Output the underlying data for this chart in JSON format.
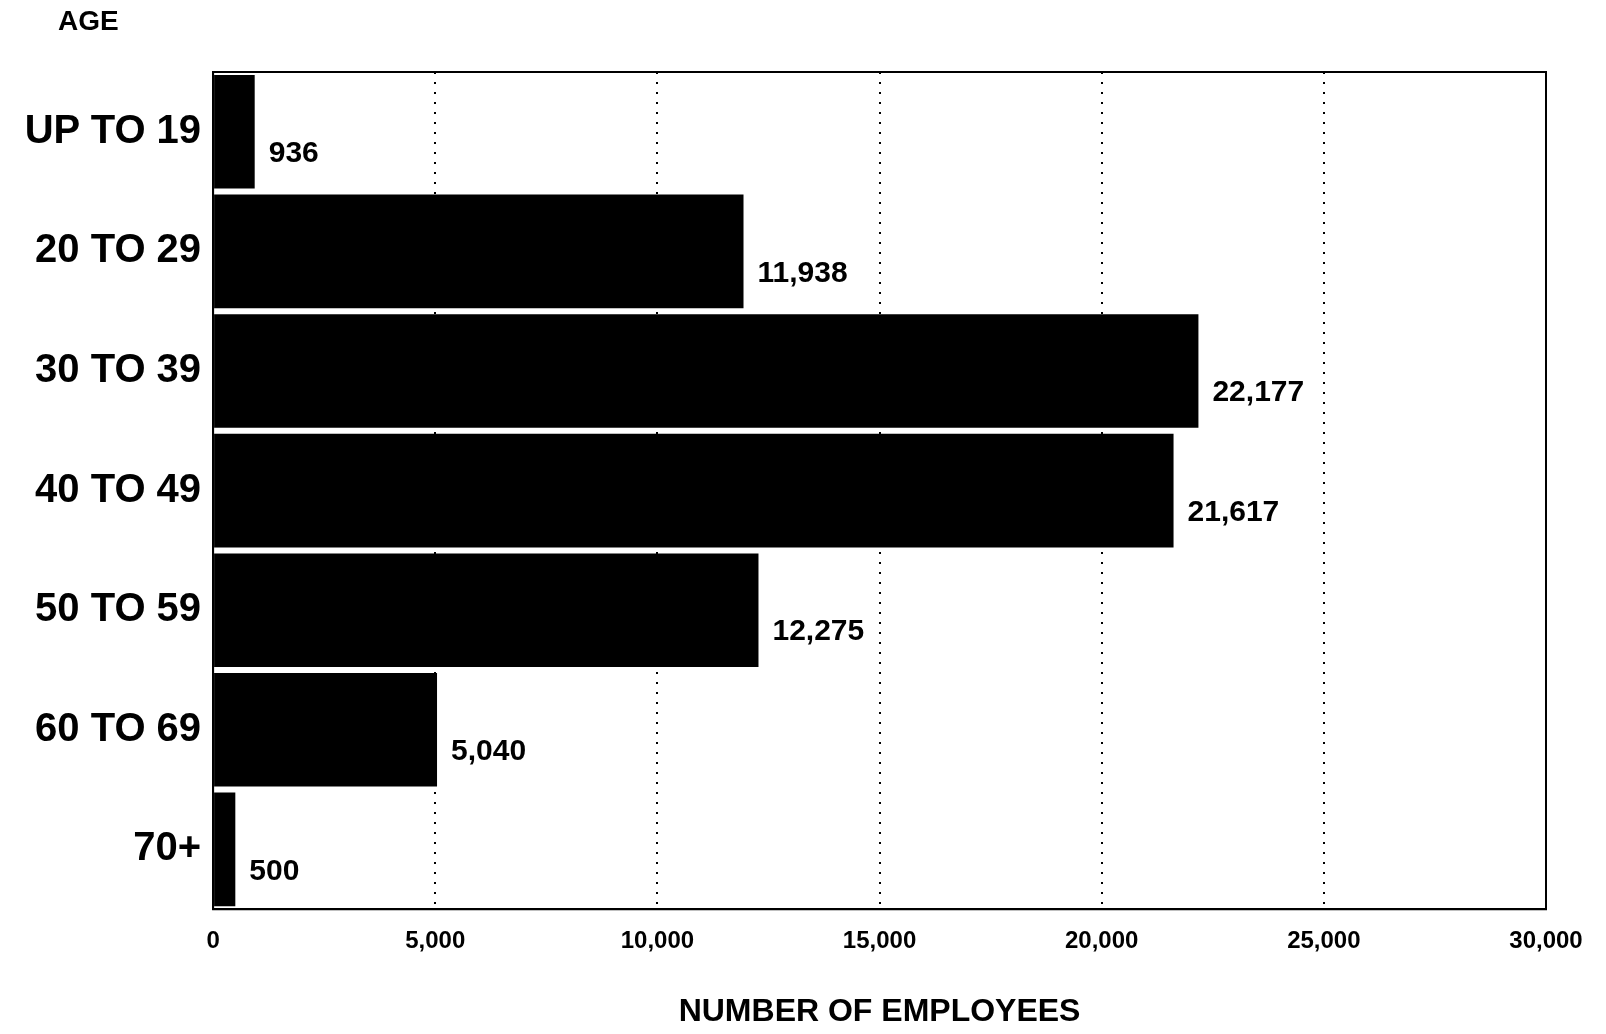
{
  "chart_data": {
    "type": "bar",
    "orientation": "horizontal",
    "ylabel": "AGE",
    "xlabel": "NUMBER OF EMPLOYEES",
    "categories": [
      "UP TO 19",
      "20 TO 29",
      "30 TO 39",
      "40 TO 49",
      "50 TO 59",
      "60 TO 69",
      "70+"
    ],
    "values": [
      936,
      11938,
      22177,
      21617,
      12275,
      5040,
      500
    ],
    "color": "#000000",
    "xlim": [
      0,
      30000
    ],
    "xticks": [
      {
        "value": 0,
        "label": "0"
      },
      {
        "value": 5000,
        "label": "5,000"
      },
      {
        "value": 10000,
        "label": "10,000"
      },
      {
        "value": 15000,
        "label": "15,000"
      },
      {
        "value": 20000,
        "label": "20,000"
      },
      {
        "value": 25000,
        "label": "25,000"
      },
      {
        "value": 30000,
        "label": "30,000"
      }
    ],
    "value_labels": [
      "936",
      "11,938",
      "22,177",
      "21,617",
      "12,275",
      "5,040",
      "500"
    ],
    "grid": "x",
    "legend": false
  }
}
